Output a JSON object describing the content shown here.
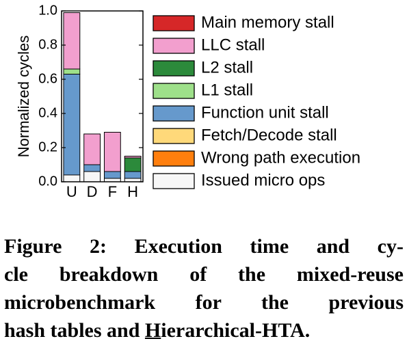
{
  "chart_data": {
    "type": "bar",
    "stacked": true,
    "categories": [
      "U",
      "D",
      "F",
      "H"
    ],
    "ylabel": "Normalized cycles",
    "ylim": [
      0,
      1.0
    ],
    "yticks": [
      "0.0",
      "0.2",
      "0.4",
      "0.6",
      "0.8",
      "1.0"
    ],
    "grid": false,
    "legend_position": "right",
    "series": [
      {
        "name": "Main memory stall",
        "color": "#d62728",
        "values": [
          0.0,
          0.0,
          0.0,
          0.0
        ]
      },
      {
        "name": "LLC stall",
        "color": "#f29fce",
        "values": [
          0.33,
          0.18,
          0.23,
          0.01
        ]
      },
      {
        "name": "L2 stall",
        "color": "#2c8a3b",
        "values": [
          0.0,
          0.0,
          0.0,
          0.08
        ]
      },
      {
        "name": "L1 stall",
        "color": "#9ee08a",
        "values": [
          0.03,
          0.0,
          0.0,
          0.0
        ]
      },
      {
        "name": "Function unit stall",
        "color": "#6699cc",
        "values": [
          0.59,
          0.04,
          0.04,
          0.04
        ]
      },
      {
        "name": "Fetch/Decode stall",
        "color": "#ffd97a",
        "values": [
          0.0,
          0.0,
          0.0,
          0.0
        ]
      },
      {
        "name": "Wrong path execution",
        "color": "#ff7f0e",
        "values": [
          0.0,
          0.0,
          0.0,
          0.0
        ]
      },
      {
        "name": "Issued micro ops",
        "color": "#f7f7f7",
        "values": [
          0.04,
          0.06,
          0.02,
          0.02
        ]
      }
    ],
    "stack_order_bottom_to_top": [
      "Issued micro ops",
      "Wrong path execution",
      "Fetch/Decode stall",
      "Function unit stall",
      "L1 stall",
      "L2 stall",
      "LLC stall",
      "Main memory stall"
    ]
  },
  "caption": {
    "line1": "Figure 2: Execution time and cy-",
    "line2": "cle breakdown of the mixed-reuse",
    "line3": "microbenchmark for the previous",
    "line4_pre": "hash tables and ",
    "line4_hl": "H",
    "line4_post": "ierarchical-HTA."
  }
}
